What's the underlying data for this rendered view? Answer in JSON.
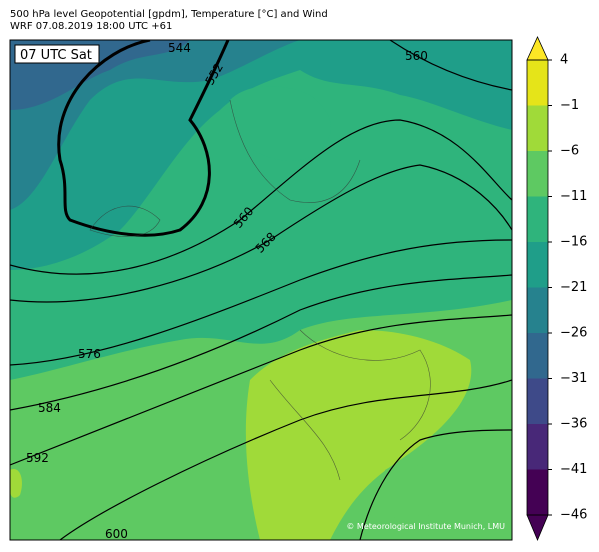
{
  "header": {
    "title_line1": "500 hPa level Geopotential [gpdm], Temperature [°C] and Wind",
    "title_line2": "WRF 07.08.2019 18:00 UTC +61"
  },
  "map": {
    "time_label": "07 UTC Sat",
    "contour_labels": [
      "544",
      "552",
      "560",
      "560",
      "568",
      "576",
      "584",
      "592",
      "600"
    ],
    "credit": "© Meteorological Institute Munich, LMU"
  },
  "colorbar": {
    "ticks": [
      4,
      {
        "value": -1,
        "label": "−1"
      },
      {
        "value": -6,
        "label": "−6"
      },
      {
        "value": -11,
        "label": "−11"
      },
      {
        "value": -16,
        "label": "−16"
      },
      {
        "value": -21,
        "label": "−21"
      },
      {
        "value": -26,
        "label": "−26"
      },
      {
        "value": -31,
        "label": "−31"
      },
      {
        "value": -36,
        "label": "−36"
      },
      {
        "value": -41,
        "label": "−41"
      },
      {
        "value": -46,
        "label": "−46"
      }
    ],
    "colors": [
      "#e5e419",
      "#a0da39",
      "#5ec962",
      "#2fb47c",
      "#1f9e89",
      "#26828e",
      "#31688e",
      "#3e4a89",
      "#482878",
      "#440154"
    ],
    "over_color": "#fde725",
    "under_color": "#440154"
  }
}
